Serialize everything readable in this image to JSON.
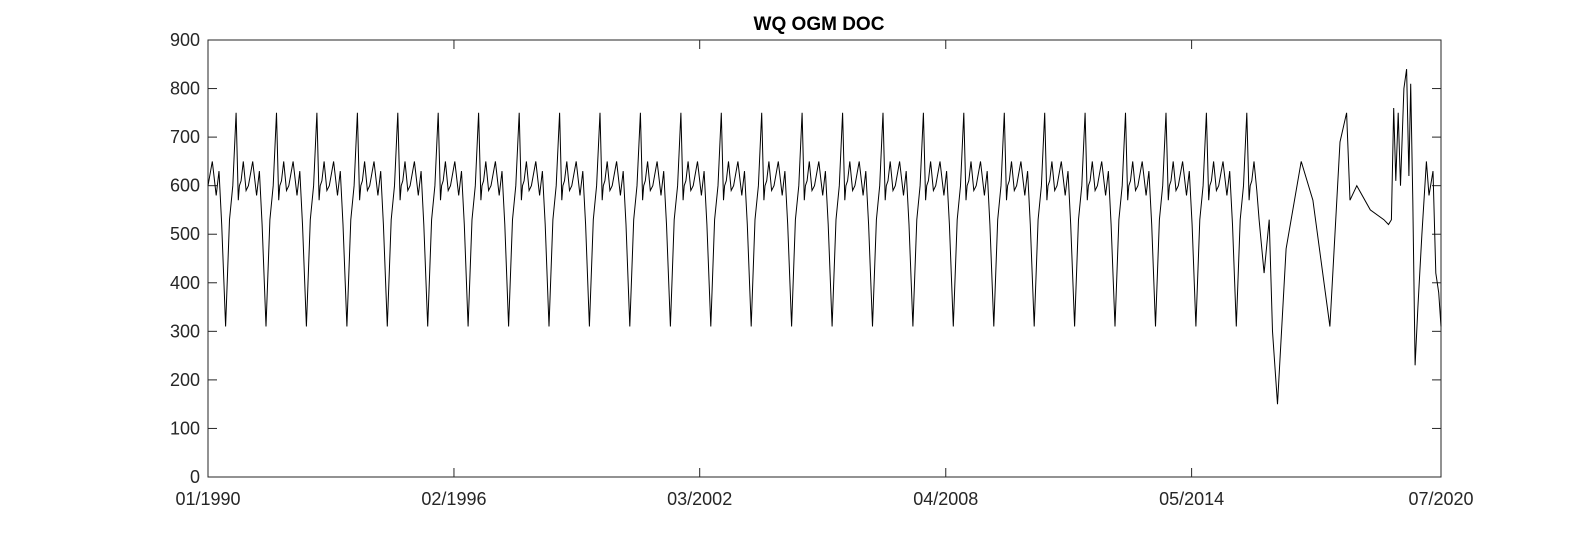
{
  "chart_data": {
    "type": "line",
    "title": "WQ OGM DOC",
    "xlabel": "",
    "ylabel": "",
    "xlim": [
      "1990-01-01",
      "2020-07-01"
    ],
    "ylim": [
      0,
      900
    ],
    "yticks": [
      0,
      100,
      200,
      300,
      400,
      500,
      600,
      700,
      800,
      900
    ],
    "xticks": [
      {
        "date": "1990-01-01",
        "label": "01/1990"
      },
      {
        "date": "1996-02-01",
        "label": "02/1996"
      },
      {
        "date": "2002-03-01",
        "label": "03/2002"
      },
      {
        "date": "2008-04-01",
        "label": "04/2008"
      },
      {
        "date": "2014-05-01",
        "label": "05/2014"
      },
      {
        "date": "2020-07-01",
        "label": "07/2020"
      }
    ],
    "grid": false,
    "legend": "none",
    "colors": {
      "line": "#000000",
      "axis": "#262626"
    },
    "series": [
      {
        "annual_cycle_1990_2015": {
          "years": [
            1990,
            2015
          ],
          "day_of_year": [
            1,
            40,
            75,
            100,
            125,
            160,
            195,
            225,
            255,
            275,
            285,
            300,
            320,
            345
          ],
          "values": [
            600,
            650,
            580,
            630,
            520,
            310,
            530,
            600,
            750,
            570,
            600,
            610,
            650,
            590
          ]
        },
        "x": [
          "2016-01-01",
          "2016-02-15",
          "2016-04-01",
          "2016-05-01",
          "2016-06-15",
          "2016-09-01",
          "2017-01-15",
          "2017-05-01",
          "2017-10-01",
          "2018-01-01",
          "2018-03-01",
          "2018-04-01",
          "2018-06-01",
          "2018-10-01",
          "2019-02-01",
          "2019-03-15",
          "2019-04-10",
          "2019-05-01",
          "2019-05-20",
          "2019-06-10",
          "2019-07-01",
          "2019-08-01",
          "2019-08-25",
          "2019-09-15",
          "2019-10-01",
          "2019-10-20",
          "2019-11-10",
          "2019-12-05",
          "2020-01-10",
          "2020-02-20",
          "2020-03-15",
          "2020-04-20",
          "2020-05-15",
          "2020-06-10",
          "2020-07-01"
        ],
        "values": [
          530,
          420,
          530,
          300,
          150,
          470,
          650,
          570,
          310,
          690,
          750,
          570,
          600,
          550,
          530,
          520,
          530,
          760,
          610,
          750,
          600,
          800,
          840,
          620,
          810,
          570,
          230,
          350,
          500,
          650,
          580,
          630,
          420,
          380,
          310
        ]
      }
    ]
  }
}
